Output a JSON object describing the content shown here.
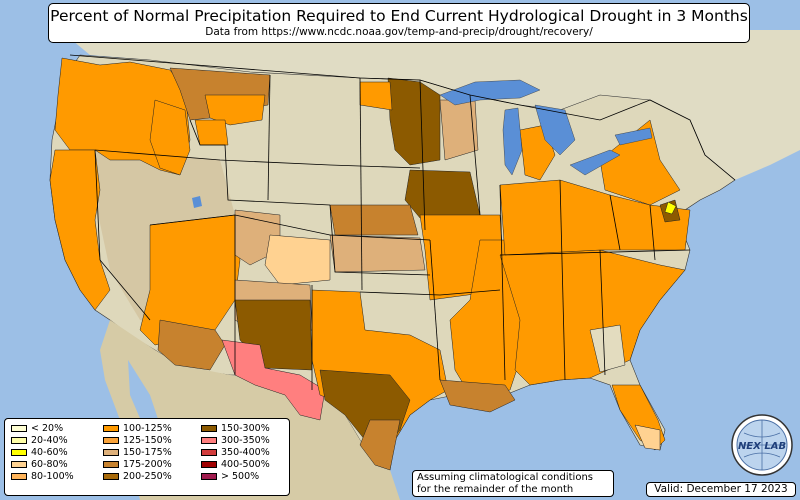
{
  "title": "Percent of Normal Precipitation Required to End Current Hydrological Drought in 3 Months",
  "subtitle": "Data from https://www.ncdc.noaa.gov/temp-and-precip/drought/recovery/",
  "legend": [
    {
      "label": "< 20%",
      "color": "#ffffd4"
    },
    {
      "label": "20-40%",
      "color": "#ffffa8"
    },
    {
      "label": "40-60%",
      "color": "#ffff00"
    },
    {
      "label": "60-80%",
      "color": "#ffd291"
    },
    {
      "label": "80-100%",
      "color": "#ffb45a"
    },
    {
      "label": "100-125%",
      "color": "#ff9a00"
    },
    {
      "label": "125-150%",
      "color": "#f9a33a"
    },
    {
      "label": "150-175%",
      "color": "#deb07a"
    },
    {
      "label": "175-200%",
      "color": "#c7822e"
    },
    {
      "label": "200-250%",
      "color": "#a86a0a"
    },
    {
      "label": "150-300%",
      "color": "#8c5a00"
    },
    {
      "label": "300-350%",
      "color": "#ff7f7f"
    },
    {
      "label": "350-400%",
      "color": "#d23c3c"
    },
    {
      "label": "400-500%",
      "color": "#a00000"
    },
    {
      "label": "> 500%",
      "color": "#a01a4e"
    }
  ],
  "note": {
    "line1": "Assuming climatological conditions",
    "line2": "for the remainder of the month"
  },
  "valid": "Valid: December 17 2023",
  "logo": {
    "text": "NEX LAB",
    "icon": "globe-logo-icon"
  },
  "colors": {
    "ocean": "#9cbfe6",
    "land": "#e3dcbf",
    "land_west": "#d9c9a6",
    "great_lakes": "#5a8fd6",
    "state_border": "#000000"
  }
}
